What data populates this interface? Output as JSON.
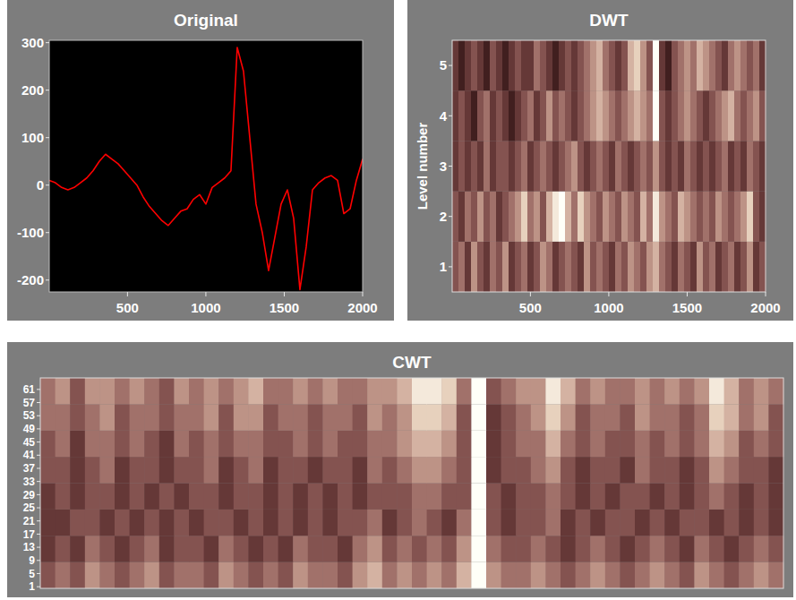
{
  "chart_data": [
    {
      "type": "line",
      "title": "Original",
      "x": [
        1,
        40,
        80,
        120,
        160,
        200,
        240,
        280,
        320,
        360,
        400,
        440,
        480,
        520,
        560,
        600,
        640,
        680,
        720,
        760,
        800,
        840,
        880,
        920,
        960,
        1000,
        1040,
        1080,
        1120,
        1160,
        1200,
        1240,
        1280,
        1320,
        1360,
        1400,
        1440,
        1480,
        1520,
        1560,
        1600,
        1640,
        1680,
        1720,
        1760,
        1800,
        1840,
        1880,
        1920,
        1960,
        2000
      ],
      "series": [
        {
          "color": "#ff0000",
          "values": [
            10,
            5,
            -5,
            -10,
            -5,
            5,
            15,
            30,
            50,
            65,
            55,
            45,
            30,
            15,
            0,
            -25,
            -45,
            -60,
            -75,
            -85,
            -70,
            -55,
            -50,
            -30,
            -20,
            -40,
            -5,
            5,
            15,
            30,
            290,
            240,
            100,
            -40,
            -100,
            -180,
            -110,
            -40,
            -10,
            -70,
            -220,
            -130,
            -10,
            5,
            15,
            20,
            10,
            -60,
            -50,
            10,
            55
          ]
        }
      ],
      "xlim": [
        1,
        2000
      ],
      "ylim": [
        -225,
        305
      ],
      "xticks": [
        500,
        1000,
        1500,
        2000
      ],
      "yticks": [
        -200,
        -100,
        0,
        100,
        200,
        300
      ],
      "grid": false
    },
    {
      "type": "heatmap",
      "title": "DWT",
      "ylabel": "Level number",
      "xlim": [
        1,
        2000
      ],
      "ylim": [
        0.5,
        5.5
      ],
      "xticks": [
        500,
        1000,
        1500,
        2000
      ],
      "yticks": [
        1,
        2,
        3,
        4,
        5
      ],
      "zlim": [
        0,
        9
      ],
      "cells": [
        [
          3,
          4,
          2,
          5,
          3,
          2,
          4,
          3,
          5,
          2,
          3,
          4,
          2,
          3,
          5,
          4,
          2,
          3,
          4,
          3,
          2,
          5,
          3,
          4,
          3,
          2,
          4,
          3,
          5,
          4,
          3,
          5,
          6,
          4,
          3,
          2,
          4,
          3,
          2,
          5,
          3,
          4,
          2,
          3,
          4,
          2,
          3,
          5,
          2,
          3
        ],
        [
          3,
          2,
          4,
          3,
          5,
          3,
          4,
          2,
          3,
          4,
          5,
          7,
          4,
          5,
          3,
          6,
          8,
          9,
          6,
          4,
          7,
          5,
          4,
          3,
          5,
          4,
          3,
          5,
          4,
          3,
          6,
          4,
          8,
          5,
          4,
          3,
          6,
          5,
          4,
          3,
          4,
          3,
          5,
          4,
          3,
          4,
          5,
          7,
          3,
          2
        ],
        [
          2,
          3,
          2,
          3,
          2,
          4,
          2,
          3,
          3,
          2,
          3,
          4,
          2,
          3,
          4,
          3,
          2,
          3,
          4,
          5,
          3,
          2,
          3,
          4,
          3,
          2,
          4,
          3,
          2,
          3,
          4,
          3,
          5,
          3,
          2,
          3,
          2,
          4,
          3,
          2,
          3,
          2,
          3,
          4,
          2,
          3,
          2,
          4,
          3,
          2
        ],
        [
          2,
          3,
          2,
          1,
          3,
          4,
          2,
          3,
          2,
          1,
          2,
          3,
          4,
          2,
          3,
          5,
          3,
          4,
          3,
          2,
          3,
          4,
          5,
          6,
          5,
          4,
          3,
          4,
          5,
          6,
          5,
          4,
          9,
          3,
          2,
          3,
          4,
          5,
          4,
          3,
          2,
          3,
          4,
          5,
          6,
          4,
          3,
          4,
          5,
          3
        ],
        [
          2,
          1,
          2,
          3,
          2,
          1,
          3,
          2,
          1,
          2,
          3,
          2,
          2,
          4,
          3,
          2,
          1,
          2,
          3,
          2,
          3,
          4,
          5,
          6,
          4,
          3,
          2,
          3,
          6,
          7,
          5,
          3,
          9,
          2,
          1,
          3,
          4,
          5,
          4,
          6,
          5,
          4,
          3,
          2,
          4,
          5,
          4,
          3,
          4,
          2
        ]
      ]
    },
    {
      "type": "heatmap",
      "title": "CWT",
      "xlim": [
        1,
        2000
      ],
      "ylim": [
        0.5,
        64.5
      ],
      "yticks": [
        1,
        5,
        9,
        13,
        17,
        21,
        25,
        29,
        33,
        37,
        41,
        45,
        49,
        53,
        57,
        61
      ],
      "tick_labels": "y",
      "zlim": [
        0,
        9
      ],
      "cells": [
        [
          3,
          4,
          3,
          5,
          4,
          3,
          4,
          5,
          3,
          4,
          4,
          3,
          5,
          4,
          3,
          4,
          3,
          5,
          4,
          4,
          3,
          5,
          6,
          4,
          5,
          4,
          5,
          4,
          6,
          9,
          5,
          4,
          4,
          5,
          4,
          3,
          4,
          5,
          4,
          3,
          4,
          5,
          4,
          3,
          5,
          4,
          3,
          4,
          5,
          4
        ],
        [
          2,
          3,
          2,
          4,
          3,
          2,
          3,
          4,
          2,
          3,
          3,
          2,
          4,
          3,
          2,
          3,
          2,
          4,
          3,
          3,
          2,
          4,
          5,
          3,
          4,
          3,
          4,
          3,
          5,
          9,
          4,
          3,
          3,
          4,
          3,
          2,
          3,
          4,
          3,
          2,
          3,
          4,
          3,
          2,
          4,
          3,
          2,
          3,
          4,
          3
        ],
        [
          2,
          2,
          3,
          3,
          2,
          3,
          2,
          3,
          2,
          3,
          2,
          3,
          3,
          2,
          3,
          2,
          3,
          2,
          3,
          2,
          3,
          3,
          4,
          2,
          3,
          4,
          3,
          2,
          4,
          9,
          3,
          2,
          3,
          3,
          4,
          2,
          3,
          2,
          3,
          3,
          2,
          3,
          2,
          3,
          3,
          2,
          3,
          2,
          3,
          2
        ],
        [
          2,
          3,
          2,
          3,
          3,
          2,
          3,
          2,
          3,
          2,
          3,
          3,
          2,
          3,
          3,
          2,
          3,
          2,
          3,
          2,
          3,
          2,
          3,
          3,
          3,
          4,
          4,
          3,
          3,
          9,
          3,
          2,
          3,
          3,
          4,
          3,
          2,
          3,
          2,
          3,
          3,
          2,
          3,
          2,
          3,
          4,
          3,
          2,
          3,
          2
        ],
        [
          3,
          3,
          2,
          3,
          4,
          2,
          3,
          3,
          2,
          3,
          3,
          4,
          2,
          3,
          4,
          2,
          3,
          3,
          2,
          3,
          3,
          2,
          4,
          3,
          4,
          5,
          5,
          4,
          3,
          9,
          2,
          3,
          3,
          4,
          5,
          3,
          2,
          3,
          3,
          2,
          4,
          3,
          3,
          2,
          3,
          5,
          4,
          3,
          3,
          2
        ],
        [
          3,
          4,
          2,
          4,
          4,
          3,
          4,
          3,
          2,
          4,
          3,
          4,
          3,
          4,
          4,
          3,
          3,
          4,
          3,
          4,
          3,
          3,
          4,
          4,
          5,
          6,
          6,
          5,
          3,
          9,
          2,
          3,
          4,
          4,
          6,
          4,
          3,
          4,
          3,
          3,
          4,
          3,
          4,
          3,
          4,
          6,
          5,
          3,
          4,
          3
        ],
        [
          4,
          4,
          3,
          4,
          5,
          3,
          4,
          4,
          3,
          4,
          4,
          5,
          3,
          5,
          5,
          3,
          4,
          4,
          3,
          4,
          4,
          3,
          5,
          4,
          5,
          7,
          7,
          6,
          3,
          9,
          2,
          3,
          4,
          5,
          7,
          5,
          3,
          4,
          4,
          3,
          5,
          4,
          4,
          3,
          4,
          7,
          6,
          4,
          5,
          3
        ],
        [
          4,
          5,
          3,
          5,
          5,
          4,
          5,
          4,
          3,
          5,
          4,
          5,
          4,
          5,
          6,
          4,
          4,
          5,
          4,
          5,
          4,
          4,
          5,
          5,
          6,
          8,
          8,
          7,
          4,
          9,
          3,
          4,
          5,
          5,
          8,
          6,
          4,
          5,
          4,
          4,
          5,
          4,
          5,
          4,
          5,
          8,
          6,
          4,
          5,
          4
        ]
      ]
    }
  ]
}
